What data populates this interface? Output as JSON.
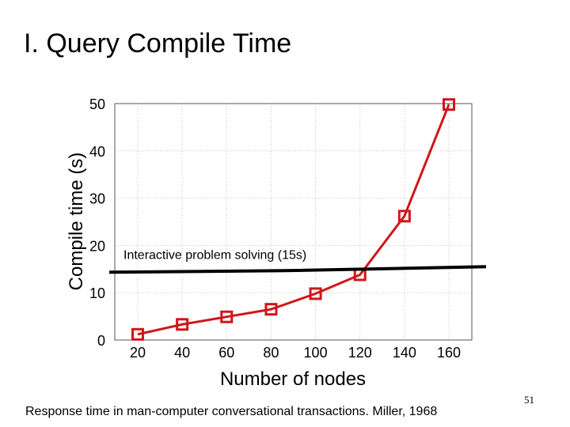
{
  "slide": {
    "title": "I. Query Compile Time",
    "footer": "Response time in man-computer conversational transactions. Miller, 1968",
    "page_number": "51"
  },
  "chart_data": {
    "type": "line",
    "title": "",
    "xlabel": "Number of nodes",
    "ylabel": "Compile time (s)",
    "x": [
      20,
      40,
      60,
      80,
      100,
      120,
      140,
      160
    ],
    "xticks": [
      20,
      40,
      60,
      80,
      100,
      120,
      140,
      160
    ],
    "yticks": [
      0,
      10,
      20,
      30,
      40,
      50
    ],
    "xlim": [
      20,
      160
    ],
    "ylim": [
      0,
      50
    ],
    "grid": true,
    "series": [
      {
        "values": [
          1.2,
          3.3,
          4.9,
          6.5,
          9.8,
          13.8,
          26.2,
          49.8
        ],
        "color": "#d0161a",
        "marker": "square"
      }
    ],
    "annotation": {
      "text": "Interactive problem solving (15s)",
      "y": 15,
      "color": "#000000"
    }
  }
}
